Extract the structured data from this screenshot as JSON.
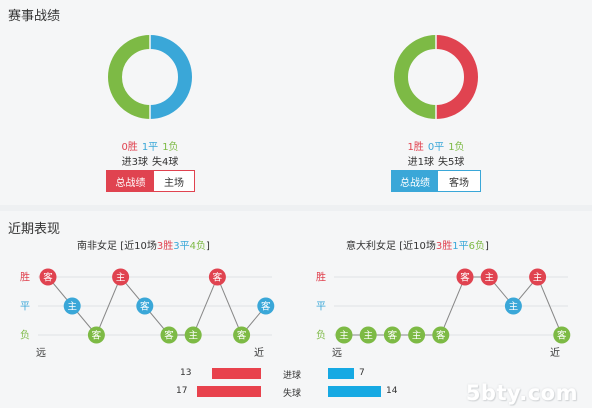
{
  "section1": {
    "title": "赛事战绩"
  },
  "section2": {
    "title": "近期表现"
  },
  "colors": {
    "win": "#e04350",
    "draw": "#3aa7d8",
    "loss": "#7dba45"
  },
  "home": {
    "record": {
      "win": "0胜",
      "draw": "1平",
      "loss": "1负",
      "win_n": 0,
      "draw_n": 1,
      "loss_n": 1
    },
    "goals": {
      "for": "进3球",
      "against": "失4球"
    },
    "tabs": [
      "总战绩",
      "主场"
    ],
    "chart": {
      "name": "南非女足",
      "prefix": "[近10场",
      "w": "3胜",
      "d": "3平",
      "l": "4负",
      "suffix": "]",
      "axis": {
        "win": "胜",
        "draw": "平",
        "loss": "负",
        "far": "远",
        "near": "近"
      },
      "results": [
        {
          "r": "W",
          "v": "客"
        },
        {
          "r": "D",
          "v": "主"
        },
        {
          "r": "L",
          "v": "客"
        },
        {
          "r": "W",
          "v": "主"
        },
        {
          "r": "D",
          "v": "客"
        },
        {
          "r": "L",
          "v": "客"
        },
        {
          "r": "L",
          "v": "主"
        },
        {
          "r": "W",
          "v": "客"
        },
        {
          "r": "L",
          "v": "客"
        },
        {
          "r": "D",
          "v": "客"
        }
      ]
    }
  },
  "away": {
    "record": {
      "win": "1胜",
      "draw": "0平",
      "loss": "1负",
      "win_n": 1,
      "draw_n": 0,
      "loss_n": 1
    },
    "goals": {
      "for": "进1球",
      "against": "失5球"
    },
    "tabs": [
      "总战绩",
      "客场"
    ],
    "chart": {
      "name": "意大利女足",
      "prefix": "[近10场",
      "w": "3胜",
      "d": "1平",
      "l": "6负",
      "suffix": "]",
      "axis": {
        "win": "胜",
        "draw": "平",
        "loss": "负",
        "far": "远",
        "near": "近"
      },
      "results": [
        {
          "r": "L",
          "v": "主"
        },
        {
          "r": "L",
          "v": "主"
        },
        {
          "r": "L",
          "v": "客"
        },
        {
          "r": "L",
          "v": "主"
        },
        {
          "r": "L",
          "v": "客"
        },
        {
          "r": "W",
          "v": "客"
        },
        {
          "r": "W",
          "v": "主"
        },
        {
          "r": "D",
          "v": "主"
        },
        {
          "r": "W",
          "v": "主"
        },
        {
          "r": "L",
          "v": "客"
        }
      ]
    }
  },
  "goals_compare": {
    "scored": {
      "label": "进球",
      "home": 13,
      "away": 7
    },
    "conceded": {
      "label": "失球",
      "home": 17,
      "away": 14
    }
  },
  "watermark": "5bty.com"
}
